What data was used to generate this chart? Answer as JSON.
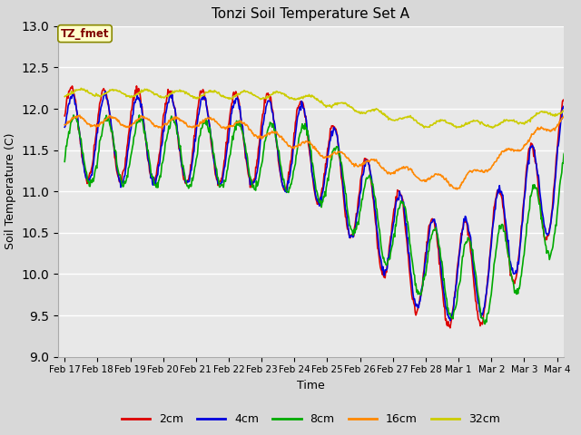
{
  "title": "Tonzi Soil Temperature Set A",
  "xlabel": "Time",
  "ylabel": "Soil Temperature (C)",
  "ylim": [
    9.0,
    13.0
  ],
  "yticks": [
    9.0,
    9.5,
    10.0,
    10.5,
    11.0,
    11.5,
    12.0,
    12.5,
    13.0
  ],
  "fig_bg_color": "#d8d8d8",
  "plot_bg_color": "#e8e8e8",
  "annotation_text": "TZ_fmet",
  "annotation_bg": "#ffffcc",
  "annotation_text_color": "#800000",
  "annotation_edge_color": "#888800",
  "series": {
    "2cm": {
      "color": "#dd0000",
      "lw": 1.2
    },
    "4cm": {
      "color": "#0000dd",
      "lw": 1.2
    },
    "8cm": {
      "color": "#00aa00",
      "lw": 1.2
    },
    "16cm": {
      "color": "#ff8800",
      "lw": 1.2
    },
    "32cm": {
      "color": "#cccc00",
      "lw": 1.2
    }
  },
  "xtick_labels": [
    "Feb 17",
    "Feb 18",
    "Feb 19",
    "Feb 20",
    "Feb 21",
    "Feb 22",
    "Feb 23",
    "Feb 24",
    "Feb 25",
    "Feb 26",
    "Feb 27",
    "Feb 28",
    "Mar 1",
    "Mar 2",
    "Mar 3",
    "Mar 4"
  ],
  "xtick_positions": [
    0,
    1,
    2,
    3,
    4,
    5,
    6,
    7,
    8,
    9,
    10,
    11,
    12,
    13,
    14,
    15
  ],
  "figsize": [
    6.4,
    4.8
  ],
  "dpi": 100
}
